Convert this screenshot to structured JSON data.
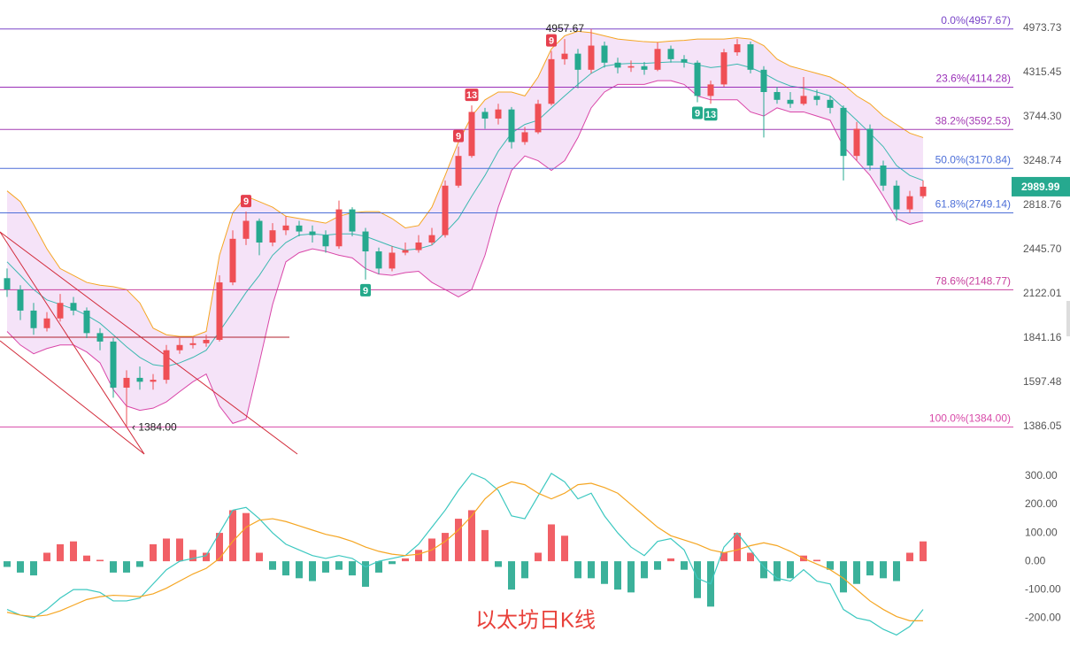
{
  "chart_data": {
    "type": "candlestick",
    "title": "以太坊日K线",
    "log_scale": true,
    "ylim": [
      1244,
      5440
    ],
    "yticks": [
      4973.73,
      4315.45,
      {
        "value": 3744.3,
        "label": "3744.30"
      },
      3248.74,
      2818.76,
      {
        "value": 2445.7,
        "label": "2445.70"
      },
      2122.01,
      1841.16,
      1597.48,
      1386.05
    ],
    "up_color": "#ef4f55",
    "down_color": "#26a98f",
    "candles": [
      [
        2230,
        2300,
        2100,
        2150
      ],
      [
        2150,
        2180,
        1950,
        2010
      ],
      [
        2010,
        2060,
        1860,
        1900
      ],
      [
        1900,
        2000,
        1880,
        1960
      ],
      [
        1960,
        2120,
        1940,
        2060
      ],
      [
        2060,
        2100,
        1980,
        2010
      ],
      [
        2010,
        2030,
        1840,
        1870
      ],
      [
        1870,
        1900,
        1770,
        1820
      ],
      [
        1820,
        1840,
        1520,
        1570
      ],
      [
        1570,
        1660,
        1384,
        1620
      ],
      [
        1620,
        1680,
        1560,
        1600
      ],
      [
        1600,
        1640,
        1560,
        1610
      ],
      [
        1610,
        1800,
        1590,
        1770
      ],
      [
        1770,
        1840,
        1750,
        1800
      ],
      [
        1800,
        1850,
        1780,
        1810
      ],
      [
        1810,
        1860,
        1790,
        1830
      ],
      [
        1830,
        2250,
        1820,
        2200
      ],
      [
        2200,
        2600,
        2180,
        2530
      ],
      [
        2530,
        2760,
        2480,
        2680
      ],
      [
        2680,
        2700,
        2400,
        2500
      ],
      [
        2500,
        2660,
        2470,
        2600
      ],
      [
        2600,
        2720,
        2560,
        2640
      ],
      [
        2640,
        2680,
        2550,
        2590
      ],
      [
        2590,
        2640,
        2500,
        2560
      ],
      [
        2560,
        2600,
        2420,
        2470
      ],
      [
        2470,
        2860,
        2450,
        2780
      ],
      [
        2780,
        2800,
        2550,
        2590
      ],
      [
        2590,
        2620,
        2220,
        2430
      ],
      [
        2430,
        2460,
        2260,
        2300
      ],
      [
        2300,
        2470,
        2280,
        2420
      ],
      [
        2420,
        2500,
        2400,
        2440
      ],
      [
        2440,
        2560,
        2420,
        2500
      ],
      [
        2500,
        2620,
        2480,
        2560
      ],
      [
        2560,
        3050,
        2540,
        3000
      ],
      [
        3000,
        3400,
        2980,
        3300
      ],
      [
        3300,
        3880,
        3280,
        3800
      ],
      [
        3800,
        3850,
        3600,
        3720
      ],
      [
        3720,
        3900,
        3650,
        3830
      ],
      [
        3830,
        3860,
        3380,
        3450
      ],
      [
        3450,
        3620,
        3420,
        3560
      ],
      [
        3560,
        3950,
        3540,
        3900
      ],
      [
        3900,
        4620,
        3880,
        4500
      ],
      [
        4500,
        4800,
        4420,
        4580
      ],
      [
        4580,
        4650,
        4100,
        4350
      ],
      [
        4350,
        4957.67,
        4300,
        4700
      ],
      [
        4700,
        4760,
        4380,
        4450
      ],
      [
        4450,
        4520,
        4300,
        4380
      ],
      [
        4380,
        4480,
        4320,
        4400
      ],
      [
        4400,
        4460,
        4280,
        4350
      ],
      [
        4350,
        4750,
        4330,
        4650
      ],
      [
        4650,
        4700,
        4450,
        4500
      ],
      [
        4500,
        4560,
        4380,
        4450
      ],
      [
        4450,
        4480,
        3920,
        4000
      ],
      [
        4000,
        4200,
        3900,
        4150
      ],
      [
        4150,
        4650,
        4120,
        4600
      ],
      [
        4600,
        4800,
        4550,
        4720
      ],
      [
        4720,
        4760,
        4300,
        4350
      ],
      [
        4350,
        4400,
        3500,
        4050
      ],
      [
        4050,
        4120,
        3900,
        3950
      ],
      [
        3950,
        4050,
        3850,
        3900
      ],
      [
        3900,
        4250,
        3880,
        4000
      ],
      [
        4000,
        4080,
        3880,
        3950
      ],
      [
        3950,
        4000,
        3780,
        3850
      ],
      [
        3850,
        3880,
        3050,
        3300
      ],
      [
        3300,
        3680,
        3250,
        3600
      ],
      [
        3600,
        3650,
        3150,
        3200
      ],
      [
        3200,
        3250,
        2950,
        3000
      ],
      [
        3000,
        3050,
        2680,
        2780
      ],
      [
        2780,
        2950,
        2750,
        2900
      ],
      [
        2900,
        3050,
        2880,
        2989.99
      ]
    ],
    "bands": [
      {
        "color": "#f5a623",
        "values": [
          2950,
          2850,
          2650,
          2450,
          2300,
          2250,
          2200,
          2180,
          2170,
          2150,
          2060,
          1900,
          1860,
          1850,
          1850,
          1880,
          2400,
          2750,
          2900,
          2850,
          2800,
          2720,
          2700,
          2680,
          2660,
          2720,
          2750,
          2760,
          2760,
          2700,
          2620,
          2640,
          2800,
          3100,
          3450,
          3750,
          3950,
          4050,
          4050,
          4000,
          4250,
          4650,
          4850,
          4920,
          4900,
          4850,
          4800,
          4780,
          4760,
          4750,
          4770,
          4780,
          4800,
          4800,
          4800,
          4820,
          4800,
          4700,
          4500,
          4400,
          4350,
          4300,
          4250,
          4150,
          4000,
          3900,
          3750,
          3650,
          3550,
          3500
        ]
      },
      {
        "color": "#3cb8b0",
        "values": [
          2350,
          2250,
          2150,
          2080,
          2050,
          2020,
          1980,
          1930,
          1860,
          1790,
          1730,
          1690,
          1680,
          1700,
          1730,
          1770,
          1880,
          2000,
          2130,
          2250,
          2400,
          2500,
          2560,
          2570,
          2560,
          2570,
          2570,
          2550,
          2510,
          2470,
          2440,
          2450,
          2480,
          2580,
          2700,
          2900,
          3100,
          3350,
          3550,
          3650,
          3700,
          3850,
          4000,
          4150,
          4300,
          4400,
          4430,
          4440,
          4440,
          4450,
          4460,
          4460,
          4420,
          4380,
          4400,
          4430,
          4380,
          4300,
          4200,
          4130,
          4100,
          4050,
          4000,
          3850,
          3700,
          3550,
          3400,
          3200,
          3100,
          3050
        ]
      },
      {
        "color": "#d946a8",
        "values": [
          1880,
          1800,
          1750,
          1780,
          1800,
          1800,
          1760,
          1700,
          1560,
          1480,
          1460,
          1470,
          1500,
          1550,
          1600,
          1640,
          1480,
          1400,
          1420,
          1700,
          2050,
          2350,
          2420,
          2450,
          2430,
          2400,
          2380,
          2300,
          2260,
          2250,
          2270,
          2280,
          2200,
          2150,
          2100,
          2150,
          2400,
          2800,
          3150,
          3300,
          3250,
          3150,
          3250,
          3500,
          3850,
          4050,
          4150,
          4150,
          4150,
          4200,
          4200,
          4150,
          4000,
          3950,
          3950,
          3950,
          3800,
          3750,
          3850,
          3800,
          3800,
          3750,
          3700,
          3400,
          3250,
          3100,
          2900,
          2700,
          2650,
          2680
        ]
      }
    ],
    "band_fill": "#f3dcf6",
    "fib_levels": [
      {
        "label": "0.0%(4957.67)",
        "value": 4957.67,
        "color": "#7a45c8"
      },
      {
        "label": "23.6%(4114.28)",
        "value": 4114.28,
        "color": "#9a2fb8"
      },
      {
        "label": "38.2%(3592.53)",
        "value": 3592.53,
        "color": "#a43bb4"
      },
      {
        "label": "50.0%(3170.84)",
        "value": 3170.84,
        "color": "#4d6fd8"
      },
      {
        "label": "61.8%(2749.14)",
        "value": 2749.14,
        "color": "#4d6fd8"
      },
      {
        "label": "78.6%(2148.77)",
        "value": 2148.77,
        "color": "#c7409e"
      },
      {
        "label": "100.0%(1384.00)",
        "value": 1384.0,
        "color": "#d84aa8"
      }
    ],
    "high_label": "4957.67",
    "low_label": "‹ 1384.00",
    "td_marks": [
      {
        "text": "9",
        "candle": 18,
        "color": "#e5404e"
      },
      {
        "text": "9",
        "candle": 27,
        "color": "#23a98a"
      },
      {
        "text": "9",
        "candle": 34,
        "color": "#e5404e"
      },
      {
        "text": "13",
        "candle": 35,
        "color": "#e5404e"
      },
      {
        "text": "9",
        "candle": 41,
        "color": "#e5404e"
      },
      {
        "text": "9",
        "candle": 52,
        "color": "#23a98a"
      },
      {
        "text": "13",
        "candle": 53,
        "color": "#23a98a"
      }
    ],
    "macd": {
      "ylim": [
        -290,
        350
      ],
      "yticks": [
        {
          "value": 300,
          "label": "300.00"
        },
        {
          "value": 200,
          "label": "200.00"
        },
        {
          "value": 100,
          "label": "100.00"
        },
        {
          "value": 0,
          "label": "0.00"
        },
        {
          "value": -100,
          "label": "-100.00"
        },
        {
          "value": -200,
          "label": "-200.00"
        }
      ],
      "histogram": [
        -20,
        -40,
        -50,
        30,
        60,
        70,
        20,
        5,
        -40,
        -40,
        -20,
        60,
        80,
        80,
        40,
        30,
        100,
        180,
        170,
        30,
        -30,
        -50,
        -60,
        -70,
        -40,
        -30,
        -50,
        -90,
        -40,
        -10,
        10,
        40,
        80,
        100,
        150,
        180,
        110,
        -20,
        -100,
        -60,
        30,
        130,
        90,
        -60,
        -60,
        -80,
        -100,
        -110,
        -60,
        -30,
        10,
        -30,
        -130,
        -160,
        30,
        100,
        30,
        -60,
        -70,
        -60,
        20,
        5,
        -30,
        -110,
        -80,
        -50,
        -60,
        -70,
        30,
        70
      ],
      "lines": [
        {
          "color": "#3cc8c0",
          "values": [
            -170,
            -190,
            -200,
            -170,
            -130,
            -100,
            -100,
            -110,
            -140,
            -140,
            -130,
            -80,
            -30,
            0,
            10,
            20,
            100,
            180,
            190,
            150,
            100,
            60,
            40,
            20,
            10,
            20,
            10,
            -20,
            0,
            10,
            20,
            60,
            120,
            180,
            250,
            310,
            290,
            250,
            160,
            150,
            230,
            310,
            280,
            220,
            240,
            160,
            100,
            50,
            20,
            70,
            80,
            40,
            -60,
            -80,
            50,
            100,
            40,
            -20,
            -60,
            -70,
            -30,
            -70,
            -80,
            -170,
            -200,
            -210,
            -240,
            -260,
            -230,
            -170
          ]
        },
        {
          "color": "#f5a623",
          "values": [
            -180,
            -190,
            -195,
            -190,
            -175,
            -155,
            -135,
            -125,
            -120,
            -122,
            -125,
            -115,
            -95,
            -70,
            -45,
            -25,
            10,
            70,
            120,
            145,
            150,
            140,
            125,
            110,
            95,
            85,
            70,
            50,
            35,
            25,
            20,
            25,
            40,
            70,
            110,
            160,
            220,
            260,
            280,
            270,
            240,
            220,
            240,
            270,
            275,
            260,
            240,
            200,
            160,
            120,
            90,
            75,
            60,
            40,
            30,
            40,
            55,
            65,
            55,
            35,
            10,
            -10,
            -30,
            -60,
            -100,
            -140,
            -170,
            -195,
            -210,
            -210
          ]
        }
      ]
    }
  }
}
